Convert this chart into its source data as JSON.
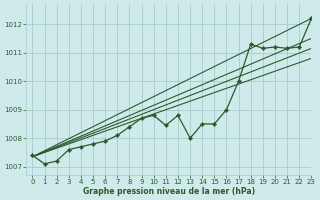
{
  "background_color": "#ceeaea",
  "grid_color": "#aacccc",
  "line_color": "#2d5a2d",
  "xlabel": "Graphe pression niveau de la mer (hPa)",
  "xlim": [
    -0.5,
    23
  ],
  "ylim": [
    1006.7,
    1012.7
  ],
  "yticks": [
    1007,
    1008,
    1009,
    1010,
    1011,
    1012
  ],
  "xticks": [
    0,
    1,
    2,
    3,
    4,
    5,
    6,
    7,
    8,
    9,
    10,
    11,
    12,
    13,
    14,
    15,
    16,
    17,
    18,
    19,
    20,
    21,
    22,
    23
  ],
  "main": [
    1007.4,
    1007.1,
    1007.2,
    1007.6,
    1007.7,
    1007.8,
    1007.9,
    1008.1,
    1008.4,
    1008.7,
    1008.8,
    1008.45,
    1008.8,
    1008.0,
    1008.5,
    1008.5,
    1009.0,
    1010.0,
    1011.3,
    1011.15,
    1011.2,
    1011.15,
    1011.2,
    1012.2
  ],
  "trend_lines": [
    {
      "x0": 0,
      "y0": 1007.35,
      "x1": 23,
      "y1": 1012.2
    },
    {
      "x0": 0,
      "y0": 1007.35,
      "x1": 23,
      "y1": 1011.15
    },
    {
      "x0": 0,
      "y0": 1007.35,
      "x1": 23,
      "y1": 1011.5
    },
    {
      "x0": 0,
      "y0": 1007.35,
      "x1": 23,
      "y1": 1010.8
    }
  ]
}
